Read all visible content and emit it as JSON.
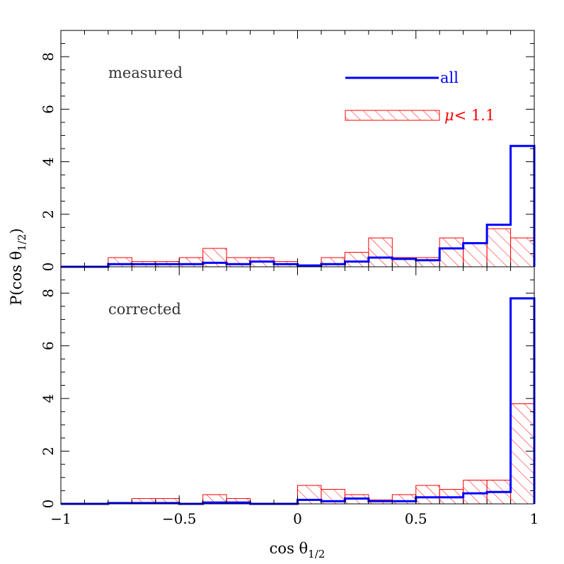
{
  "chart_data": [
    {
      "type": "histogram",
      "panel_label": "measured",
      "xlim": [
        -1,
        1
      ],
      "ylim": [
        0,
        9
      ],
      "bin_edges": [
        -1.0,
        -0.9,
        -0.8,
        -0.7,
        -0.6,
        -0.5,
        -0.4,
        -0.3,
        -0.2,
        -0.1,
        0.0,
        0.1,
        0.2,
        0.3,
        0.4,
        0.5,
        0.6,
        0.7,
        0.8,
        0.9,
        1.0
      ],
      "series": [
        {
          "name": "all",
          "style": "step-line",
          "color": "#0000ff",
          "values": [
            0.0,
            0.0,
            0.1,
            0.1,
            0.1,
            0.1,
            0.15,
            0.1,
            0.2,
            0.1,
            0.05,
            0.1,
            0.2,
            0.35,
            0.3,
            0.25,
            0.7,
            0.9,
            1.6,
            4.6
          ]
        },
        {
          "name": "μ< 1.1",
          "style": "hatched",
          "color": "#ff0000",
          "values": [
            0.0,
            0.0,
            0.35,
            0.2,
            0.2,
            0.35,
            0.7,
            0.35,
            0.35,
            0.2,
            0.0,
            0.35,
            0.55,
            1.1,
            0.35,
            0.35,
            1.1,
            0.9,
            1.45,
            1.1
          ]
        }
      ]
    },
    {
      "type": "histogram",
      "panel_label": "corrected",
      "xlim": [
        -1,
        1
      ],
      "ylim": [
        0,
        9
      ],
      "bin_edges": [
        -1.0,
        -0.9,
        -0.8,
        -0.7,
        -0.6,
        -0.5,
        -0.4,
        -0.3,
        -0.2,
        -0.1,
        0.0,
        0.1,
        0.2,
        0.3,
        0.4,
        0.5,
        0.6,
        0.7,
        0.8,
        0.9,
        1.0
      ],
      "series": [
        {
          "name": "all",
          "style": "step-line",
          "color": "#0000ff",
          "values": [
            0.0,
            0.0,
            0.03,
            0.03,
            0.03,
            0.0,
            0.05,
            0.05,
            0.0,
            0.0,
            0.15,
            0.1,
            0.2,
            0.1,
            0.1,
            0.25,
            0.25,
            0.4,
            0.45,
            7.8
          ]
        },
        {
          "name": "μ< 1.1",
          "style": "hatched",
          "color": "#ff0000",
          "values": [
            0.0,
            0.0,
            0.0,
            0.2,
            0.2,
            0.0,
            0.35,
            0.2,
            0.0,
            0.0,
            0.7,
            0.55,
            0.35,
            0.15,
            0.35,
            0.7,
            0.55,
            0.9,
            0.9,
            3.8
          ]
        }
      ]
    }
  ],
  "axes": {
    "xlabel": "cos θ",
    "xlabel_sub": "1/2",
    "ylabel": "P(cos θ",
    "ylabel_sub": "1/2",
    "ylabel_close": ")",
    "x_ticks": [
      {
        "value": -1,
        "label": "−1"
      },
      {
        "value": -0.5,
        "label": "−0.5"
      },
      {
        "value": 0,
        "label": "0"
      },
      {
        "value": 0.5,
        "label": "0.5"
      },
      {
        "value": 1,
        "label": "1"
      }
    ],
    "y_ticks": [
      {
        "value": 0,
        "label": "0"
      },
      {
        "value": 2,
        "label": "2"
      },
      {
        "value": 4,
        "label": "4"
      },
      {
        "value": 6,
        "label": "6"
      },
      {
        "value": 8,
        "label": "8"
      }
    ]
  },
  "legend": {
    "placement": "top-right of upper panel",
    "all_label": "all",
    "all_color": "#0000ff",
    "hatched_label": "μ< 1.1",
    "hatched_color": "#ff0000"
  }
}
